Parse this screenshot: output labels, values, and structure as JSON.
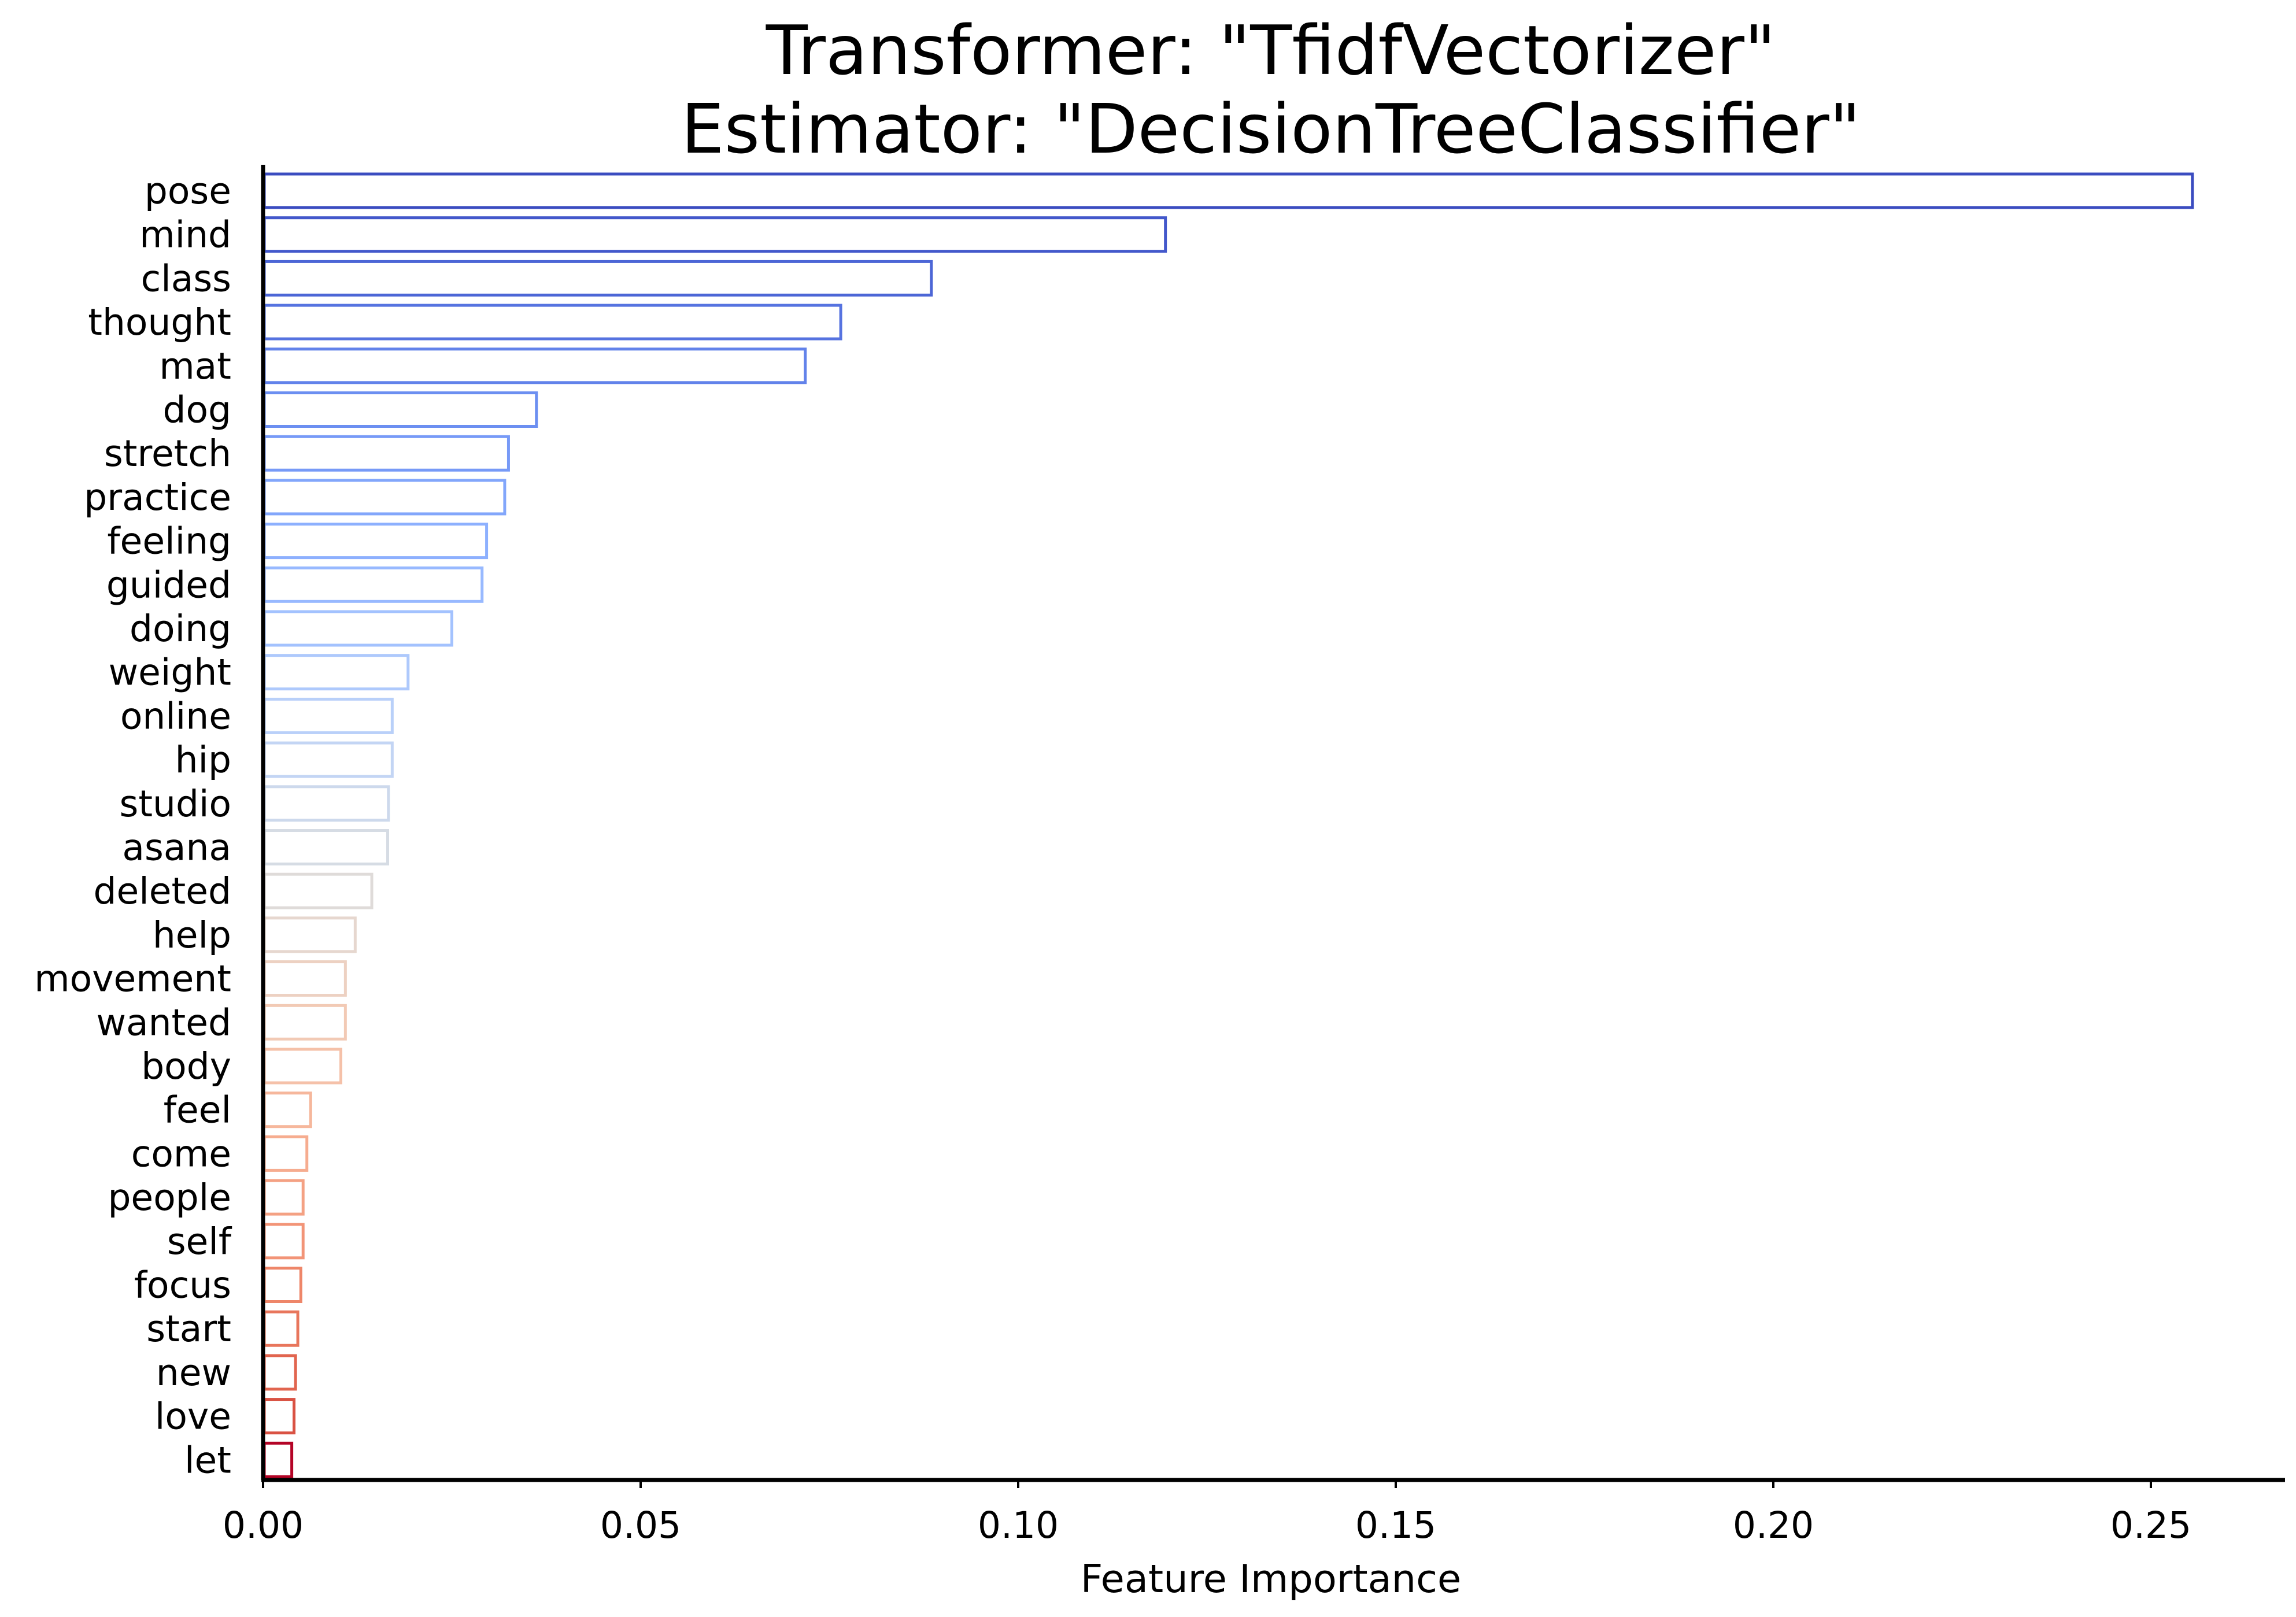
{
  "chart_data": {
    "type": "bar",
    "orientation": "horizontal",
    "title": "Transformer: \"TfidfVectorizer\"",
    "subtitle": "Estimator: \"DecisionTreeClassifier\"",
    "xlabel": "Feature Importance",
    "ylabel": "",
    "xlim": [
      0,
      0.268
    ],
    "xticks": [
      "0.00",
      "0.05",
      "0.10",
      "0.15",
      "0.20",
      "0.25"
    ],
    "xtick_values": [
      0,
      0.05,
      0.1,
      0.15,
      0.2,
      0.25
    ],
    "grid": false,
    "legend": "none",
    "bar_style": "outline",
    "colormap": "coolwarm",
    "categories": [
      "pose",
      "mind",
      "class",
      "thought",
      "mat",
      "dog",
      "stretch",
      "practice",
      "feeling",
      "guided",
      "doing",
      "weight",
      "online",
      "hip",
      "studio",
      "asana",
      "deleted",
      "help",
      "movement",
      "wanted",
      "body",
      "feel",
      "come",
      "people",
      "self",
      "focus",
      "start",
      "new",
      "love",
      "let"
    ],
    "values": [
      0.2555,
      0.1195,
      0.0885,
      0.0765,
      0.0718,
      0.0362,
      0.0325,
      0.032,
      0.0296,
      0.029,
      0.025,
      0.0192,
      0.0171,
      0.0171,
      0.0166,
      0.0165,
      0.0144,
      0.0122,
      0.0109,
      0.0109,
      0.0103,
      0.0063,
      0.0058,
      0.0053,
      0.0053,
      0.005,
      0.0046,
      0.0043,
      0.0041,
      0.0038
    ],
    "colors": [
      "#3b4cc0",
      "#4358cb",
      "#4c66d6",
      "#5673e0",
      "#6282ea",
      "#6c8ff1",
      "#779af7",
      "#82a6fb",
      "#8db0fe",
      "#98b9ff",
      "#a3c2fe",
      "#aec9fc",
      "#b9d0f9",
      "#c3d5f4",
      "#cdd9ec",
      "#d6dce4",
      "#dfdbd9",
      "#e6d7cf",
      "#edd1c2",
      "#f2cab5",
      "#f5c1a9",
      "#f6b79c",
      "#f6ac8f",
      "#f4a183",
      "#f29477",
      "#ee8669",
      "#e8765c",
      "#e1654f",
      "#d95243",
      "#b40426"
    ]
  }
}
